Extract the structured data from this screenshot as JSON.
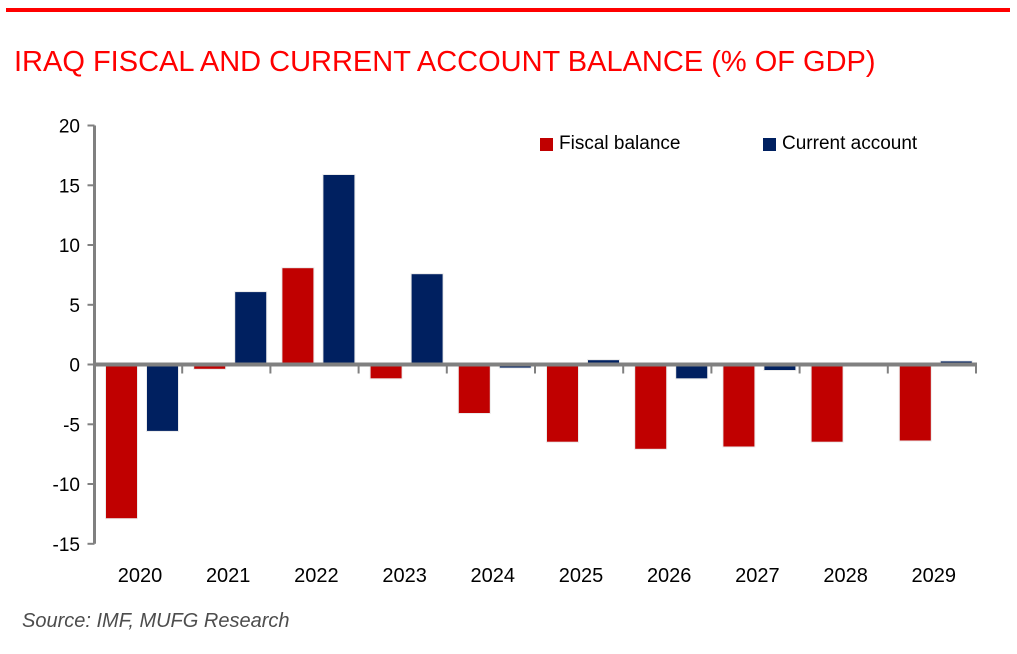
{
  "colors": {
    "accent_red": "#ff0000",
    "bar_red": "#c00000",
    "bar_navy": "#002060",
    "axis_gray": "#808080",
    "label_black": "#000000",
    "source_gray": "#4d4d4d"
  },
  "source": {
    "text": "Source: IMF, MUFG Research"
  },
  "chart_data": {
    "type": "bar",
    "title": "IRAQ FISCAL AND CURRENT ACCOUNT BALANCE (% OF GDP)",
    "categories": [
      "2020",
      "2021",
      "2022",
      "2023",
      "2024",
      "2025",
      "2026",
      "2027",
      "2028",
      "2029"
    ],
    "series": [
      {
        "name": "Fiscal balance",
        "color": "#c00000",
        "values": [
          -12.9,
          -0.4,
          8.1,
          -1.2,
          -4.1,
          -6.5,
          -7.1,
          -6.9,
          -6.5,
          -6.4
        ]
      },
      {
        "name": "Current account",
        "color": "#002060",
        "values": [
          -5.6,
          6.1,
          15.9,
          7.6,
          -0.3,
          0.4,
          -1.2,
          -0.5,
          0.0,
          0.3
        ]
      }
    ],
    "xlabel": "",
    "ylabel": "",
    "ylim": [
      -15,
      20
    ],
    "ytick_step": 5,
    "yticks": [
      20,
      15,
      10,
      5,
      0,
      -5,
      -10,
      -15
    ],
    "grid": false,
    "legend_position": "top-inside",
    "source": "Source: IMF, MUFG Research"
  }
}
